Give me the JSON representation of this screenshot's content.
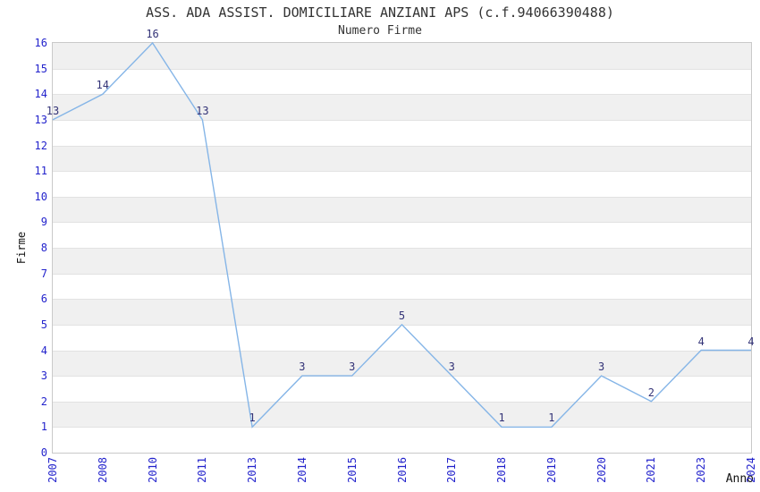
{
  "chart_data": {
    "type": "line",
    "title": "ASS. ADA ASSIST. DOMICILIARE ANZIANI APS (c.f.94066390488)",
    "subtitle": "Numero Firme",
    "xlabel": "Anno",
    "ylabel": "Firme",
    "categories": [
      "2007",
      "2008",
      "2010",
      "2011",
      "2013",
      "2014",
      "2015",
      "2016",
      "2017",
      "2018",
      "2019",
      "2020",
      "2021",
      "2023",
      "2024"
    ],
    "values": [
      13,
      14,
      16,
      13,
      1,
      3,
      3,
      5,
      3,
      1,
      1,
      3,
      2,
      4,
      4
    ],
    "ylim": [
      0,
      16
    ],
    "y_ticks": [
      0,
      1,
      2,
      3,
      4,
      5,
      6,
      7,
      8,
      9,
      10,
      11,
      12,
      13,
      14,
      15,
      16
    ],
    "grid": "horizontal-bands-alternating",
    "legend": "none",
    "colors": {
      "line": "#85b5e7",
      "tick_label": "#2323cc",
      "data_label": "#333377",
      "band": "#f0f0f0",
      "gridline": "#e2e2e2",
      "plot_border": "#c9c9c9",
      "title_text": "#333333",
      "axis_label_text": "#111111",
      "background": "#ffffff"
    }
  }
}
